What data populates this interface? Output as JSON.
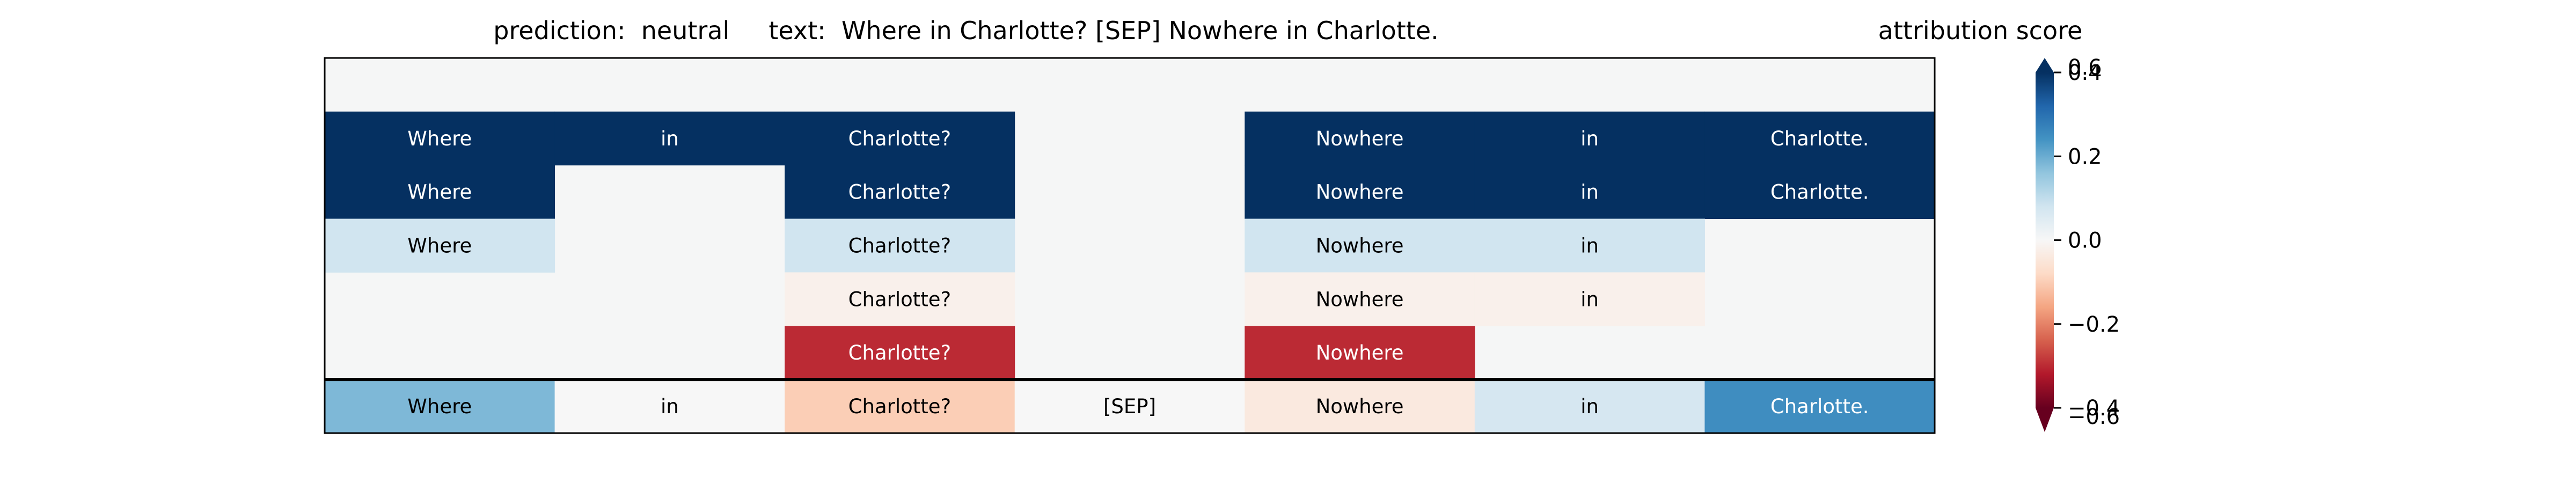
{
  "chart_data": {
    "type": "heatmap",
    "title_prefix": "prediction:",
    "prediction": "neutral",
    "text_prefix": "text:",
    "text": "Where in Charlotte? [SEP] Nowhere in Charlotte.",
    "colorbar_label": "attribution score",
    "colorbar": {
      "colormap": "RdBu",
      "vmin": -0.4,
      "vmax": 0.4,
      "ticks": [
        {
          "value": 0.4,
          "label": "0.4"
        },
        {
          "value": 0.2,
          "label": "0.2"
        },
        {
          "value": 0.0,
          "label": "0.0"
        },
        {
          "value": -0.2,
          "label": "−0.2"
        },
        {
          "value": -0.4,
          "label": "−0.4"
        }
      ],
      "overlap_labels": {
        "top": "0.6",
        "bottom": "−0.6"
      }
    },
    "tokens": [
      "Where",
      "in",
      "Charlotte?",
      "[SEP]",
      "Nowhere",
      "in",
      "Charlotte."
    ],
    "rows": [
      [
        null,
        null,
        null,
        null,
        null,
        null,
        null
      ],
      [
        0.6,
        0.6,
        0.6,
        null,
        0.6,
        0.6,
        0.6
      ],
      [
        0.4,
        null,
        0.4,
        null,
        0.4,
        0.4,
        0.4
      ],
      [
        0.08,
        null,
        0.08,
        null,
        0.08,
        0.08,
        null
      ],
      [
        null,
        null,
        -0.02,
        null,
        -0.02,
        -0.02,
        null
      ],
      [
        null,
        null,
        -0.3,
        null,
        -0.3,
        null,
        null
      ]
    ],
    "summary_row": [
      0.18,
      0.0,
      -0.1,
      0.0,
      -0.04,
      0.07,
      0.25
    ],
    "colors": {
      "empty_cell": "#f5f6f6",
      "frame": "#000000"
    }
  }
}
